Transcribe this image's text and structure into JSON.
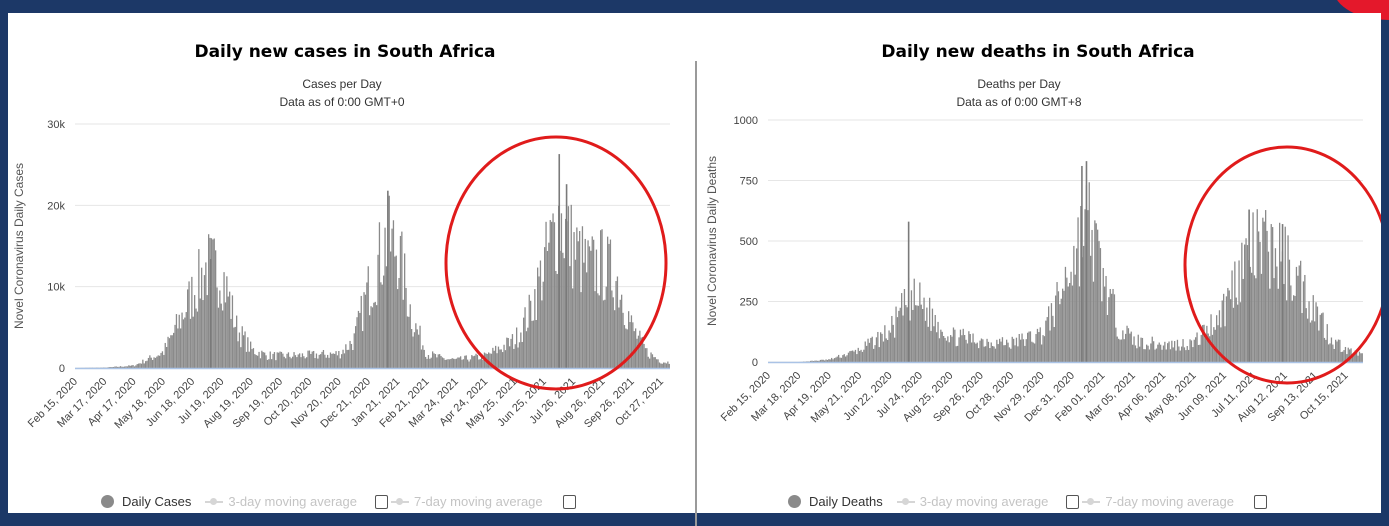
{
  "chart_data": [
    {
      "type": "bar",
      "panel_title": "Daily new cases in South Africa",
      "title": "Cases per Day",
      "subtitle": "Data as of 0:00 GMT+0",
      "ylabel": "Novel Coronavirus Daily Cases",
      "yticks": [
        "0",
        "10k",
        "20k",
        "30k"
      ],
      "ylim": [
        0,
        30000
      ],
      "xticks": [
        "Feb 15, 2020",
        "Mar 17, 2020",
        "Apr 17, 2020",
        "May 18, 2020",
        "Jun 18, 2020",
        "Jul 19, 2020",
        "Aug 19, 2020",
        "Sep 19, 2020",
        "Oct 20, 2020",
        "Nov 20, 2020",
        "Dec 21, 2020",
        "Jan 21, 2021",
        "Feb 21, 2021",
        "Mar 24, 2021",
        "Apr 24, 2021",
        "May 25, 2021",
        "Jun 25, 2021",
        "Jul 26, 2021",
        "Aug 26, 2021",
        "Sep 26, 2021",
        "Oct 27, 2021"
      ],
      "series_name": "Daily Cases",
      "profile": [
        [
          0,
          0
        ],
        [
          1,
          50
        ],
        [
          2,
          300
        ],
        [
          3,
          2000
        ],
        [
          3.5,
          5500
        ],
        [
          4,
          9500
        ],
        [
          4.5,
          12800
        ],
        [
          5,
          12000
        ],
        [
          5.5,
          5000
        ],
        [
          6,
          2300
        ],
        [
          6.5,
          1600
        ],
        [
          7,
          1500
        ],
        [
          8,
          1600
        ],
        [
          9,
          1800
        ],
        [
          9.5,
          3500
        ],
        [
          10,
          10000
        ],
        [
          10.6,
          16000
        ],
        [
          11,
          15000
        ],
        [
          11.5,
          6000
        ],
        [
          12,
          1800
        ],
        [
          12.5,
          1200
        ],
        [
          13,
          1000
        ],
        [
          14,
          1500
        ],
        [
          15,
          3500
        ],
        [
          15.5,
          7000
        ],
        [
          16,
          13000
        ],
        [
          16.5,
          19000
        ],
        [
          17,
          15000
        ],
        [
          17.5,
          12500
        ],
        [
          18,
          13000
        ],
        [
          18.5,
          11000
        ],
        [
          19,
          5000
        ],
        [
          19.5,
          2000
        ],
        [
          20,
          800
        ],
        [
          21,
          500
        ]
      ],
      "peaks": [
        [
          4.6,
          13400
        ],
        [
          10.65,
          21800
        ],
        [
          16.5,
          26300
        ],
        [
          16.75,
          22600
        ]
      ],
      "legend": [
        "Daily Cases",
        "3-day moving average",
        "7-day moving average"
      ],
      "annotation": "red circle around the third wave"
    },
    {
      "type": "bar",
      "panel_title": "Daily new deaths in South Africa",
      "title": "Deaths per Day",
      "subtitle": "Data as of 0:00 GMT+8",
      "ylabel": "Novel Coronavirus Daily Deaths",
      "yticks": [
        "0",
        "250",
        "500",
        "750",
        "1000"
      ],
      "ylim": [
        0,
        1000
      ],
      "xticks": [
        "Feb 15, 2020",
        "Mar 18, 2020",
        "Apr 19, 2020",
        "May 21, 2020",
        "Jun 22, 2020",
        "Jul 24, 2020",
        "Aug 25, 2020",
        "Sep 26, 2020",
        "Oct 28, 2020",
        "Nov 29, 2020",
        "Dec 31, 2020",
        "Feb 01, 2021",
        "Mar 05, 2021",
        "Apr 06, 2021",
        "May 08, 2021",
        "Jun 09, 2021",
        "Jul 11, 2021",
        "Aug 12, 2021",
        "Sep 13, 2021",
        "Oct 15, 2021"
      ],
      "series_name": "Daily Deaths",
      "profile": [
        [
          0,
          0
        ],
        [
          1,
          0
        ],
        [
          2,
          10
        ],
        [
          3,
          50
        ],
        [
          4,
          130
        ],
        [
          4.6,
          260
        ],
        [
          5,
          250
        ],
        [
          5.5,
          170
        ],
        [
          6,
          110
        ],
        [
          7,
          90
        ],
        [
          8,
          80
        ],
        [
          9,
          120
        ],
        [
          9.5,
          250
        ],
        [
          10,
          430
        ],
        [
          10.5,
          600
        ],
        [
          11,
          350
        ],
        [
          11.5,
          160
        ],
        [
          12,
          90
        ],
        [
          13,
          70
        ],
        [
          14,
          80
        ],
        [
          14.5,
          150
        ],
        [
          15,
          230
        ],
        [
          15.5,
          400
        ],
        [
          16,
          470
        ],
        [
          16.5,
          480
        ],
        [
          17,
          420
        ],
        [
          17.5,
          330
        ],
        [
          18,
          220
        ],
        [
          18.5,
          100
        ],
        [
          19,
          50
        ],
        [
          19.5,
          30
        ]
      ],
      "peaks": [
        [
          4.6,
          580
        ],
        [
          10.3,
          810
        ],
        [
          10.45,
          830
        ],
        [
          15.8,
          630
        ],
        [
          16.9,
          570
        ]
      ],
      "legend": [
        "Daily Deaths",
        "3-day moving average",
        "7-day moving average"
      ],
      "annotation": "red circle around the third wave"
    }
  ]
}
